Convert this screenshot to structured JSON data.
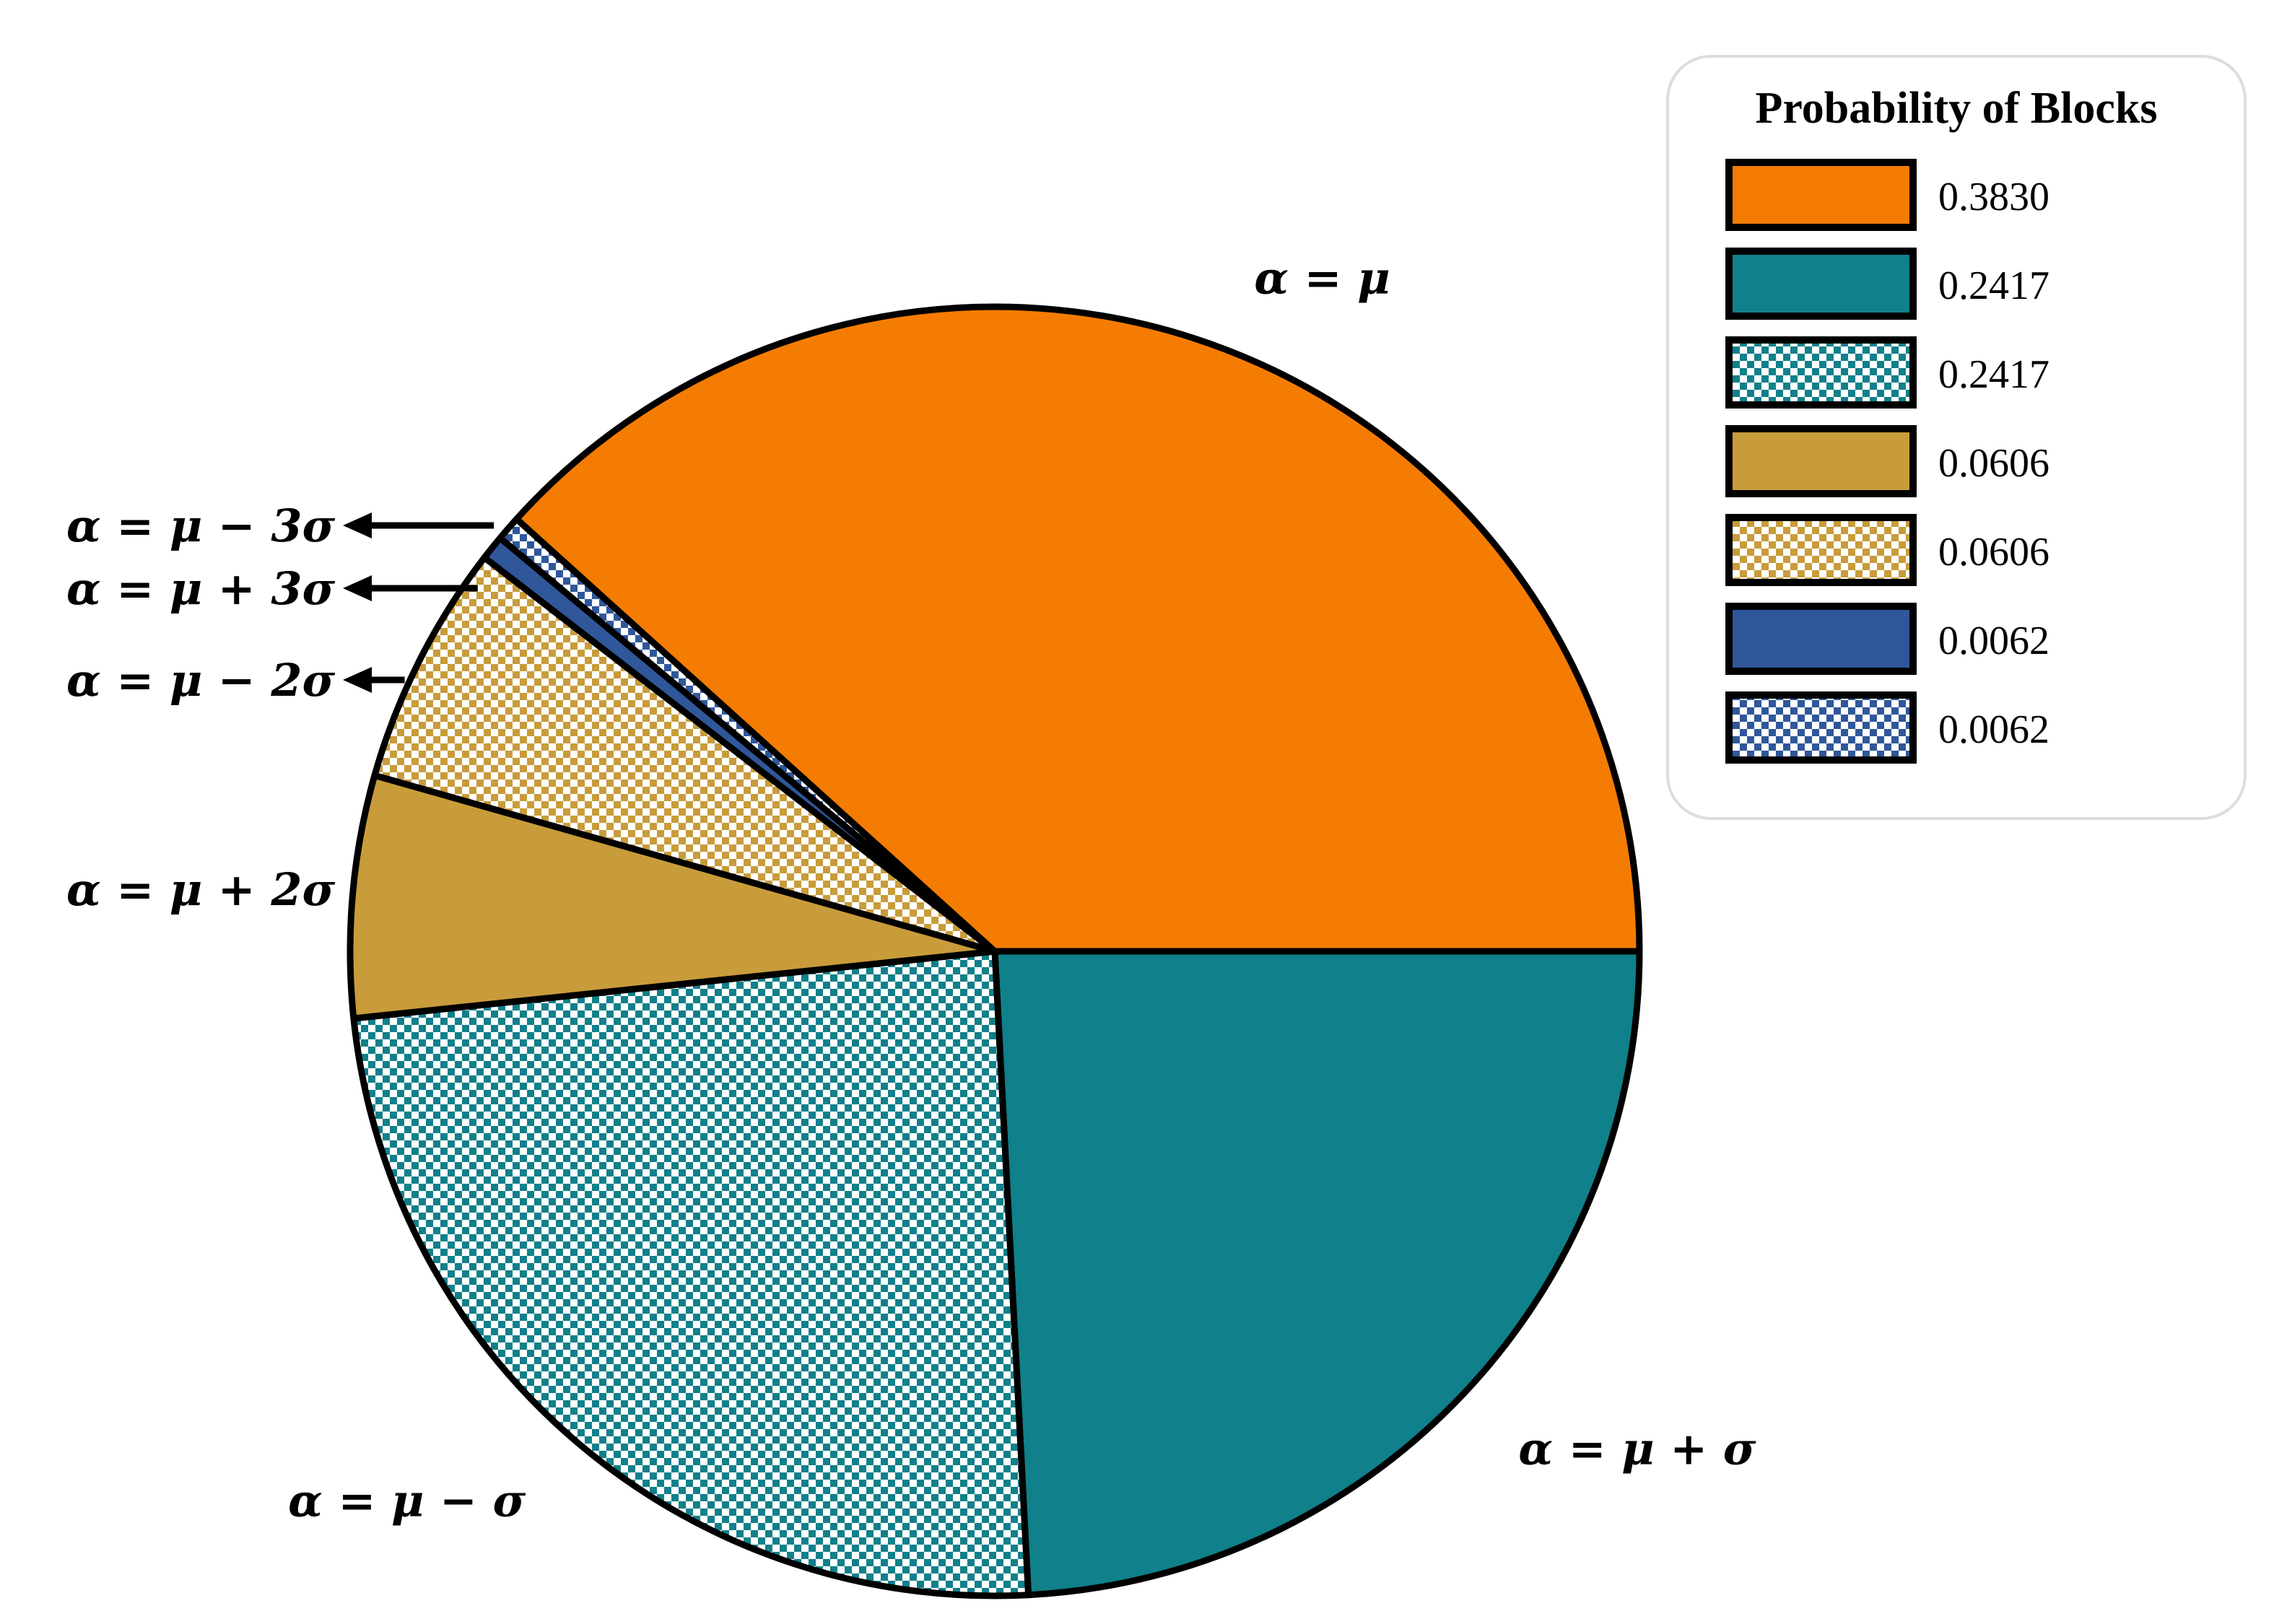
{
  "chart_data": {
    "type": "pie",
    "start_angle_deg": 0,
    "direction": "clockwise",
    "slices": [
      {
        "label": "α = μ + σ",
        "value": 0.2417,
        "color": "#10808a",
        "hatch": false
      },
      {
        "label": "α = μ − σ",
        "value": 0.2417,
        "color": "#10808a",
        "hatch": true
      },
      {
        "label": "α = μ + 2σ",
        "value": 0.0606,
        "color": "#c89c3a",
        "hatch": false
      },
      {
        "label": "α = μ − 2σ",
        "value": 0.0606,
        "color": "#c89c3a",
        "hatch": true
      },
      {
        "label": "α = μ + 3σ",
        "value": 0.0062,
        "color": "#2f579a",
        "hatch": false
      },
      {
        "label": "α = μ − 3σ",
        "value": 0.0062,
        "color": "#2f579a",
        "hatch": true
      },
      {
        "label": "α = μ",
        "value": 0.383,
        "color": "#f57c02",
        "hatch": false
      }
    ],
    "legend": {
      "title": "Probability of Blocks",
      "placement": "top-right",
      "entries": [
        {
          "text": "0.3830",
          "color": "#f57c02",
          "hatch": false
        },
        {
          "text": "0.2417",
          "color": "#10808a",
          "hatch": false
        },
        {
          "text": "0.2417",
          "color": "#10808a",
          "hatch": true
        },
        {
          "text": "0.0606",
          "color": "#c89c3a",
          "hatch": false
        },
        {
          "text": "0.0606",
          "color": "#c89c3a",
          "hatch": true
        },
        {
          "text": "0.0062",
          "color": "#2f579a",
          "hatch": false
        },
        {
          "text": "0.0062",
          "color": "#2f579a",
          "hatch": true
        }
      ]
    }
  }
}
